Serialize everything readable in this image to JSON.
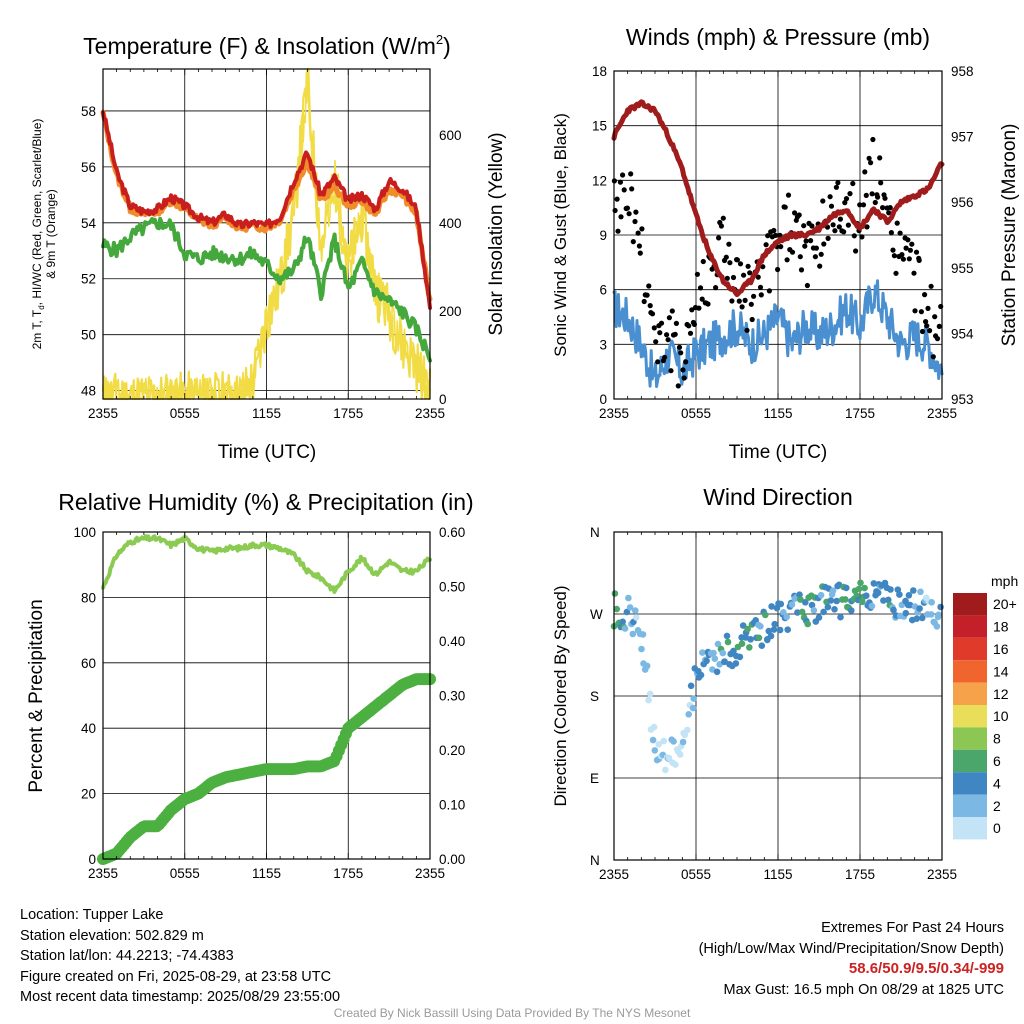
{
  "charts": {
    "temperature": {
      "title_main": "Temperature (F) & Insolation (W/m",
      "title_sup": "2",
      "title_end": ")",
      "ylabel_line1": "2m T, T",
      "ylabel_sub": "d",
      "ylabel_line1_rest": ", HI/WC (Red, Green, Scarlet/Blue)",
      "ylabel_line2": "& 9m T (Orange)",
      "ylabel_right": "Solar Insolation (Yellow)",
      "xlabel": "Time (UTC)"
    },
    "winds": {
      "title": "Winds (mph) & Pressure (mb)",
      "ylabel_left": "Sonic Wind & Gust (Blue, Black)",
      "ylabel_right": "Station Pressure (Maroon)",
      "xlabel": "Time (UTC)"
    },
    "humidity": {
      "title": "Relative Humidity (%) & Precipitation (in)",
      "ylabel_left": "Percent & Precipitation"
    },
    "direction": {
      "title": "Wind Direction",
      "ylabel_left": "Direction (Colored By Speed)",
      "legend_title": "mph",
      "legend_labels": [
        "20+",
        "18",
        "16",
        "14",
        "12",
        "10",
        "8",
        "6",
        "4",
        "2",
        "0"
      ],
      "legend_colors": [
        "#a01c1c",
        "#c4202a",
        "#e03a2a",
        "#f0642e",
        "#f6a24a",
        "#e8de5a",
        "#8cc653",
        "#4aa66a",
        "#3f86c2",
        "#7cb8e4",
        "#c2e4f6"
      ]
    }
  },
  "info": {
    "location": "Location: Tupper Lake",
    "elevation": "Station elevation: 502.829 m",
    "latlon": "Station lat/lon: 44.2213; -74.4383",
    "created": "Figure created on Fri, 2025-08-29, at 23:58 UTC",
    "recent": "Most recent data timestamp: 2025/08/29 23:55:00",
    "extremes_title": "Extremes For Past 24 Hours",
    "extremes_sub": "(High/Low/Max Wind/Precipitation/Snow Depth)",
    "extremes_values": "58.6/50.9/9.5/0.34/-999",
    "max_gust": "Max Gust: 16.5 mph On 08/29 at 1825 UTC",
    "credit": "Created By Nick Bassill Using Data Provided By The NYS Mesonet"
  },
  "chart_data": [
    {
      "type": "line",
      "title": "Temperature (F) & Insolation (W/m2)",
      "xlabel": "Time (UTC)",
      "ylabel": "2m T, Td, HI/WC (Red, Green, Scarlet/Blue) & 9m T (Orange)",
      "ylabel_right": "Solar Insolation (Yellow)",
      "x_ticks": [
        "2355",
        "0555",
        "1155",
        "1755",
        "2355"
      ],
      "ylim": [
        47.7,
        59.5
      ],
      "y_ticks": [
        48,
        50,
        52,
        54,
        56,
        58
      ],
      "ylim_right": [
        0,
        750
      ],
      "y_ticks_right": [
        0,
        200,
        400,
        600
      ],
      "x_hours": [
        0,
        1,
        2,
        3,
        4,
        5,
        6,
        7,
        8,
        9,
        10,
        11,
        12,
        13,
        14,
        15,
        16,
        17,
        18,
        19,
        20,
        21,
        22,
        23,
        24
      ],
      "series": [
        {
          "name": "2m T",
          "color": "#c81e1e",
          "values": [
            58.0,
            55.8,
            54.6,
            54.4,
            54.5,
            54.9,
            54.6,
            54.2,
            54.0,
            54.3,
            53.9,
            54.0,
            53.9,
            54.2,
            55.5,
            56.5,
            55.0,
            55.6,
            54.8,
            55.0,
            54.5,
            55.5,
            55.2,
            54.5,
            51.0
          ]
        },
        {
          "name": "9m T",
          "color": "#f08c2a",
          "values": [
            57.9,
            55.7,
            54.5,
            54.3,
            54.4,
            54.8,
            54.5,
            54.1,
            53.9,
            54.2,
            53.8,
            53.9,
            53.8,
            54.1,
            55.2,
            56.2,
            54.8,
            55.3,
            54.6,
            54.8,
            54.3,
            55.2,
            55.0,
            54.3,
            51.2
          ]
        },
        {
          "name": "Td",
          "color": "#44a83c",
          "values": [
            53.2,
            53.0,
            53.5,
            53.8,
            54.0,
            53.9,
            52.9,
            52.7,
            52.9,
            52.8,
            52.7,
            52.9,
            52.5,
            52.0,
            52.3,
            53.5,
            51.5,
            53.4,
            51.6,
            52.6,
            51.5,
            51.2,
            50.8,
            50.2,
            49.2
          ]
        },
        {
          "name": "Solar Insolation",
          "color": "#f2dc46",
          "axis": "right",
          "values": [
            0,
            0,
            0,
            0,
            0,
            0,
            0,
            0,
            0,
            0,
            0,
            40,
            180,
            260,
            420,
            720,
            350,
            500,
            300,
            420,
            250,
            200,
            120,
            80,
            10
          ]
        }
      ]
    },
    {
      "type": "line",
      "title": "Winds (mph) & Pressure (mb)",
      "xlabel": "Time (UTC)",
      "ylabel": "Sonic Wind & Gust (Blue, Black)",
      "ylabel_right": "Station Pressure (Maroon)",
      "x_ticks": [
        "2355",
        "0555",
        "1155",
        "1755",
        "2355"
      ],
      "ylim": [
        0,
        18
      ],
      "y_ticks": [
        0,
        3,
        6,
        9,
        12,
        15,
        18
      ],
      "ylim_right": [
        953,
        958
      ],
      "y_ticks_right": [
        953,
        954,
        955,
        956,
        957,
        958
      ],
      "x_hours": [
        0,
        1,
        2,
        3,
        4,
        5,
        6,
        7,
        8,
        9,
        10,
        11,
        12,
        13,
        14,
        15,
        16,
        17,
        18,
        19,
        20,
        21,
        22,
        23,
        24
      ],
      "series": [
        {
          "name": "Sonic Wind",
          "color": "#4a90d0",
          "values": [
            5.0,
            4.5,
            3.0,
            1.0,
            2.5,
            1.5,
            2.5,
            3.0,
            3.5,
            4.0,
            3.0,
            3.5,
            4.5,
            3.0,
            4.0,
            3.5,
            4.0,
            5.0,
            4.0,
            6.0,
            4.5,
            3.0,
            3.5,
            3.0,
            1.5
          ]
        },
        {
          "name": "Gust",
          "color": "#000000",
          "values": [
            10.0,
            11.5,
            8.0,
            3.5,
            3.0,
            2.5,
            5.0,
            7.0,
            8.5,
            6.0,
            5.5,
            6.5,
            8.5,
            9.5,
            8.0,
            9.0,
            10.0,
            10.5,
            9.5,
            13.0,
            9.0,
            8.0,
            6.5,
            4.5,
            3.0
          ]
        },
        {
          "name": "Station Pressure",
          "color": "#a01c1c",
          "axis": "right",
          "values": [
            957.0,
            957.4,
            957.5,
            957.4,
            957.0,
            956.5,
            955.8,
            955.2,
            954.8,
            954.6,
            954.8,
            955.2,
            955.4,
            955.5,
            955.5,
            955.6,
            955.8,
            955.9,
            955.6,
            955.9,
            955.7,
            956.0,
            956.1,
            956.2,
            956.6
          ]
        }
      ]
    },
    {
      "type": "line",
      "title": "Relative Humidity (%) & Precipitation (in)",
      "ylabel": "Percent & Precipitation",
      "x_ticks": [
        "2355",
        "0555",
        "1155",
        "1755",
        "2355"
      ],
      "ylim": [
        0,
        100
      ],
      "y_ticks": [
        0,
        20,
        40,
        60,
        80,
        100
      ],
      "ylim_right": [
        0,
        0.6
      ],
      "y_ticks_right": [
        "0.00",
        "0.10",
        "0.20",
        "0.30",
        "0.40",
        "0.50",
        "0.60"
      ],
      "x_hours": [
        0,
        1,
        2,
        3,
        4,
        5,
        6,
        7,
        8,
        9,
        10,
        11,
        12,
        13,
        14,
        15,
        16,
        17,
        18,
        19,
        20,
        21,
        22,
        23,
        24
      ],
      "series": [
        {
          "name": "Relative Humidity",
          "color": "#8ccb52",
          "values": [
            83,
            93,
            97,
            98,
            98,
            96,
            98,
            95,
            94,
            95,
            95,
            96,
            96,
            95,
            93,
            88,
            86,
            82,
            88,
            92,
            87,
            91,
            88,
            88,
            92
          ]
        },
        {
          "name": "Precipitation",
          "color": "#4cb040",
          "axis": "right",
          "values": [
            0.0,
            0.01,
            0.04,
            0.06,
            0.06,
            0.09,
            0.11,
            0.12,
            0.14,
            0.15,
            0.155,
            0.16,
            0.165,
            0.165,
            0.165,
            0.17,
            0.17,
            0.18,
            0.24,
            0.26,
            0.28,
            0.3,
            0.32,
            0.33,
            0.33
          ]
        }
      ]
    },
    {
      "type": "scatter",
      "title": "Wind Direction",
      "ylabel": "Direction (Colored By Speed)",
      "x_ticks": [
        "2355",
        "0555",
        "1155",
        "1755",
        "2355"
      ],
      "y_ticks": [
        "N",
        "E",
        "S",
        "W",
        "N"
      ],
      "ylim": [
        0,
        360
      ],
      "colorbar_title": "mph",
      "x_hours": [
        0,
        1,
        2,
        3,
        4,
        5,
        6,
        7,
        8,
        9,
        10,
        11,
        12,
        13,
        14,
        15,
        16,
        17,
        18,
        19,
        20,
        21,
        22,
        23,
        24
      ],
      "series": [
        {
          "name": "Direction",
          "values": [
            275,
            270,
            250,
            120,
            115,
            130,
            200,
            220,
            225,
            235,
            245,
            255,
            265,
            270,
            275,
            280,
            285,
            285,
            288,
            290,
            285,
            285,
            280,
            275,
            265
          ],
          "speeds": [
            6,
            3,
            1,
            1,
            1,
            1,
            3,
            3,
            4,
            4,
            4,
            4,
            4,
            3,
            5,
            4,
            4,
            5,
            6,
            4,
            4,
            3,
            3,
            2,
            2
          ]
        }
      ]
    }
  ]
}
